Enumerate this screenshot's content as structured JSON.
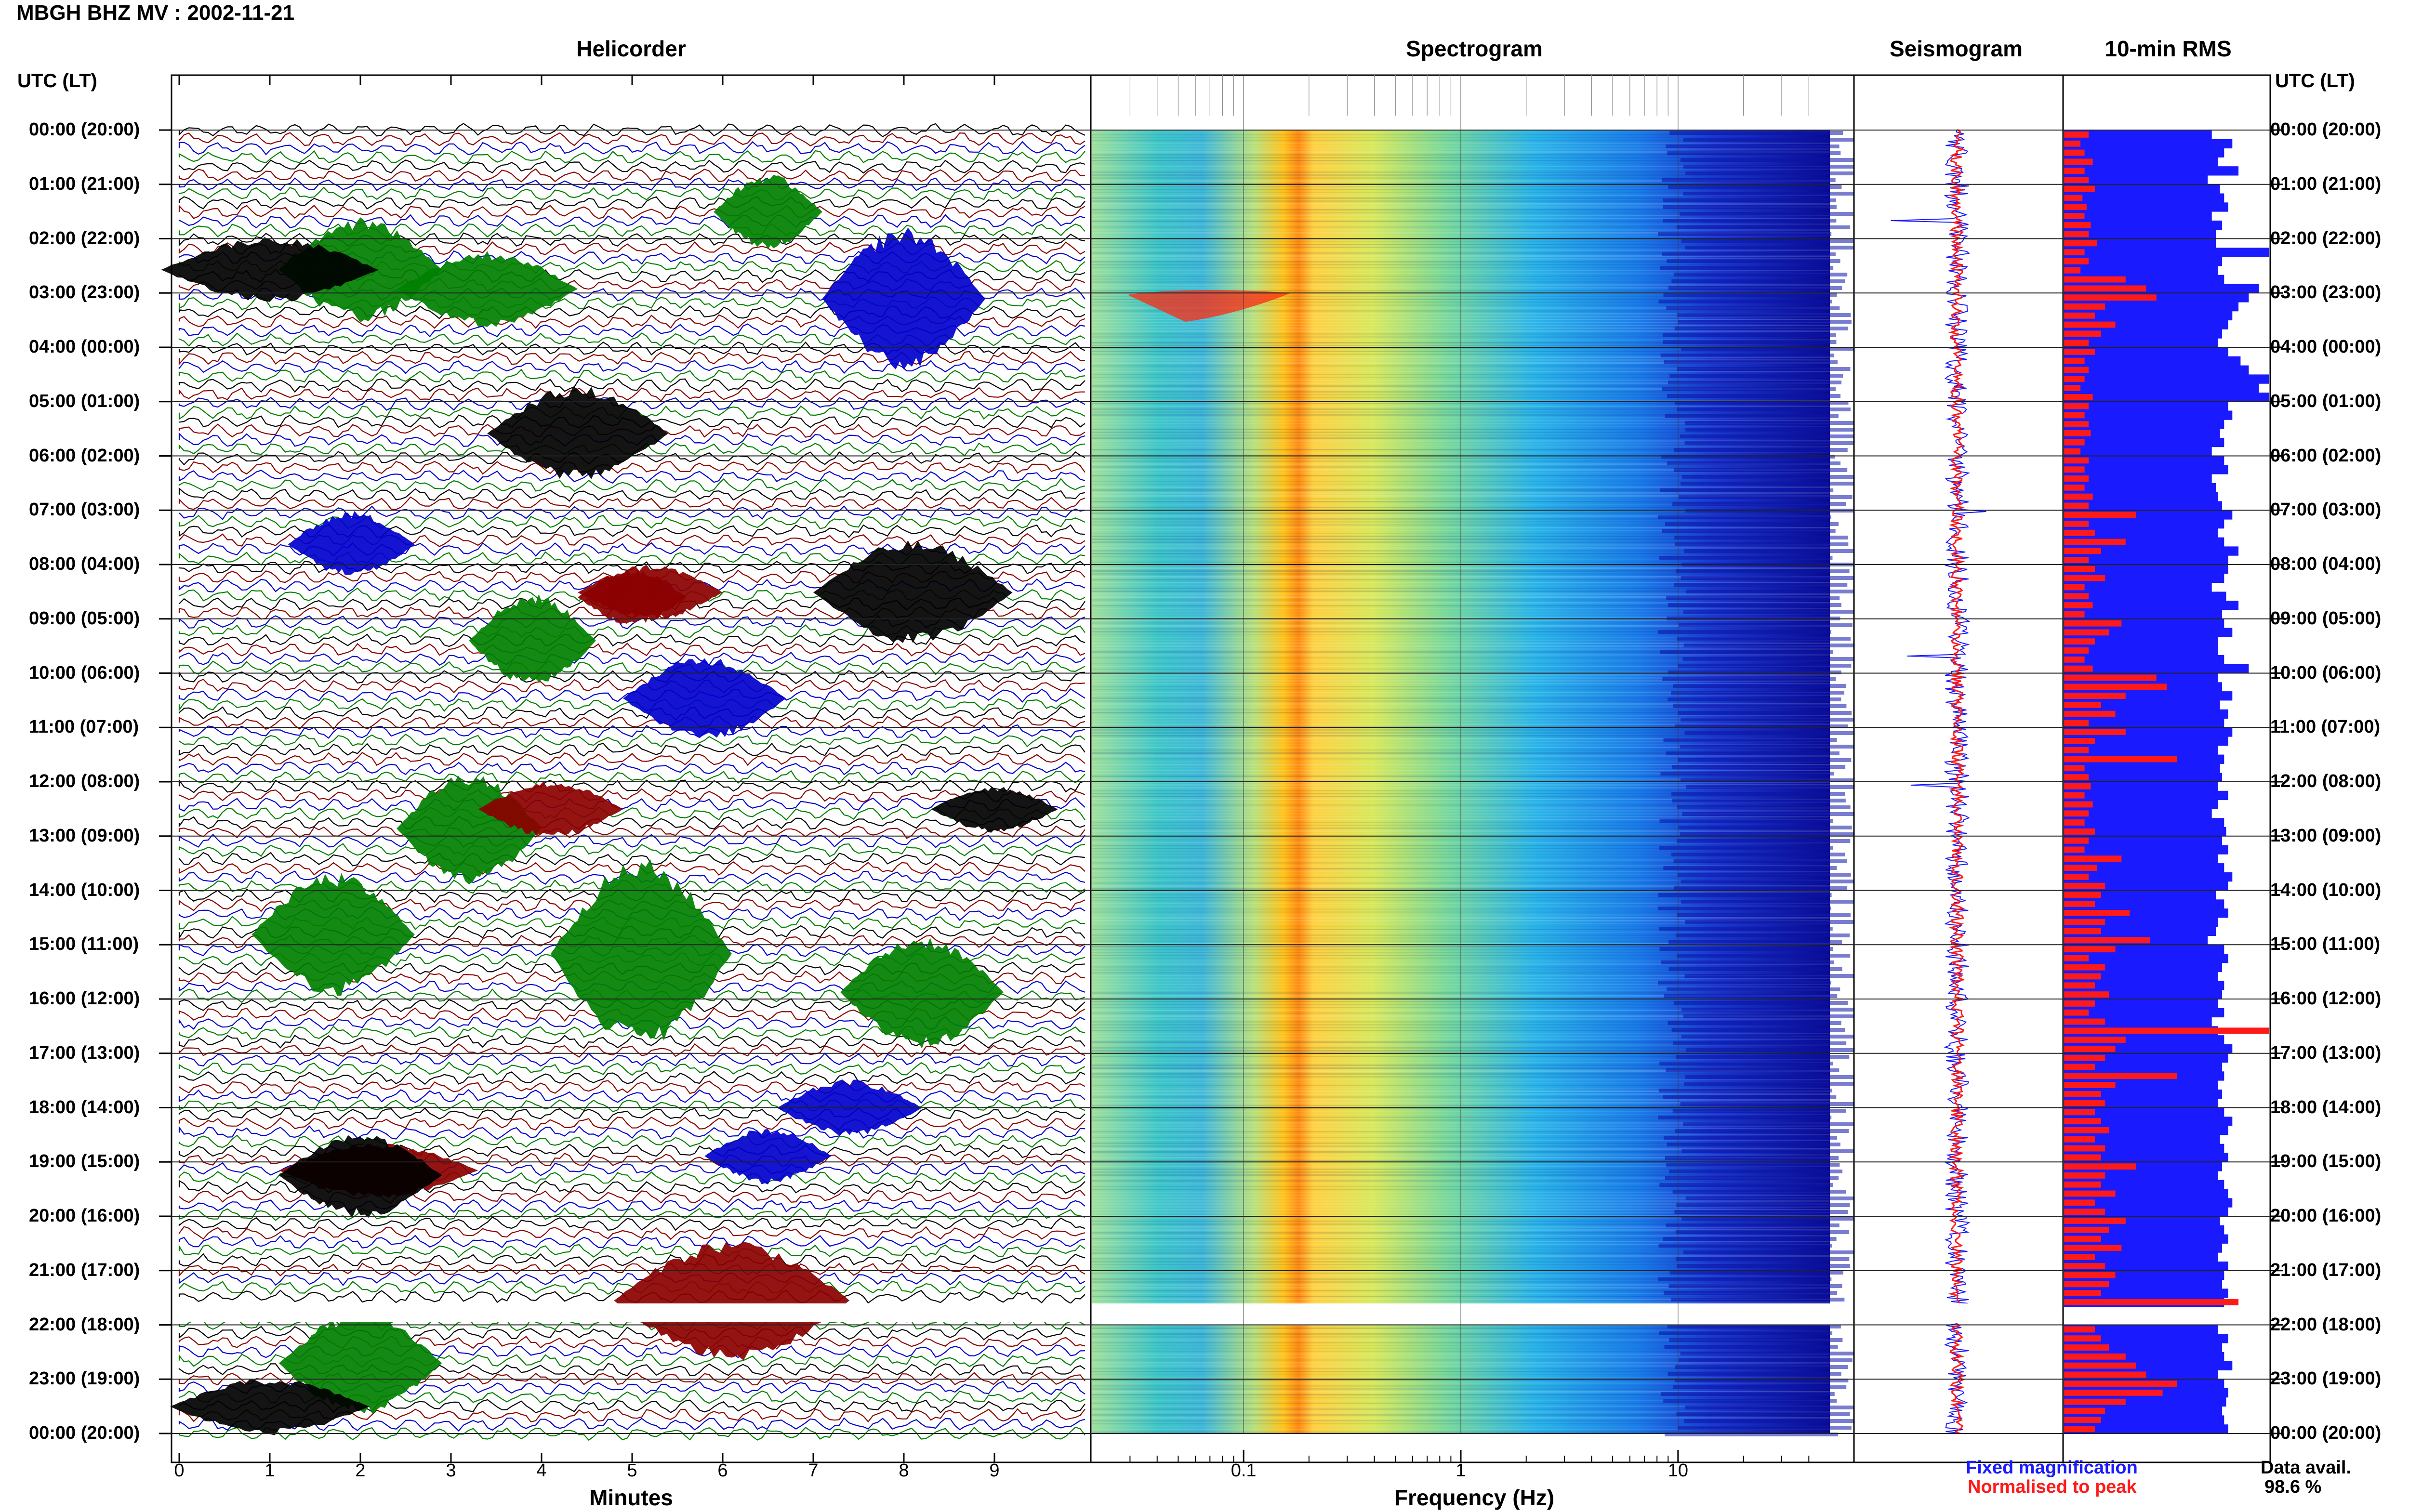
{
  "header": {
    "title": "MBGH BHZ MV : 2002-11-21"
  },
  "panels": {
    "helicorder": "Helicorder",
    "spectrogram": "Spectrogram",
    "seismogram": "Seismogram",
    "rms": "10-min RMS"
  },
  "axes": {
    "utc_label": "UTC (LT)",
    "hours": [
      "00:00 (20:00)",
      "01:00 (21:00)",
      "02:00 (22:00)",
      "03:00 (23:00)",
      "04:00 (00:00)",
      "05:00 (01:00)",
      "06:00 (02:00)",
      "07:00 (03:00)",
      "08:00 (04:00)",
      "09:00 (05:00)",
      "10:00 (06:00)",
      "11:00 (07:00)",
      "12:00 (08:00)",
      "13:00 (09:00)",
      "14:00 (10:00)",
      "15:00 (11:00)",
      "16:00 (12:00)",
      "17:00 (13:00)",
      "18:00 (14:00)",
      "19:00 (15:00)",
      "20:00 (16:00)",
      "21:00 (17:00)",
      "22:00 (18:00)",
      "23:00 (19:00)",
      "00:00 (20:00)"
    ],
    "minutes_ticks": [
      "0",
      "1",
      "2",
      "3",
      "4",
      "5",
      "6",
      "7",
      "8",
      "9"
    ],
    "minutes_label": "Minutes",
    "freq_ticks": [
      "0.1",
      "1",
      "10"
    ],
    "freq_label": "Frequency (Hz)"
  },
  "legend": {
    "fixed": "Fixed magnification",
    "normalised": "Normalised to peak",
    "fixed_color": "#1a1aff",
    "normalised_color": "#ff1a1a"
  },
  "availability": {
    "label": "Data avail.",
    "value": "98.6 %"
  },
  "chart_data": [
    {
      "type": "line",
      "panel": "Helicorder",
      "xlabel": "Minutes",
      "xlim": [
        0,
        10
      ],
      "ylabel": "UTC (LT)",
      "series_colors": [
        "#000000",
        "#8b0000",
        "#0000cd",
        "#008000"
      ],
      "data_gap_utc": [
        "21:40",
        "22:00"
      ]
    },
    {
      "type": "heatmap",
      "panel": "Spectrogram",
      "xlabel": "Frequency (Hz)",
      "xscale": "log",
      "xlim": [
        0.02,
        50
      ],
      "peak_band_hz": [
        0.2,
        0.25
      ],
      "data_gap_utc": [
        "21:40",
        "22:00"
      ]
    },
    {
      "type": "line",
      "panel": "Seismogram",
      "series": [
        {
          "name": "Fixed magnification"
        },
        {
          "name": "Normalised to peak"
        }
      ]
    },
    {
      "type": "bar",
      "panel": "10-min RMS",
      "ylabel": "UTC (LT)",
      "series": [
        {
          "name": "Fixed magnification",
          "values": [
            0.72,
            0.82,
            0.78,
            0.75,
            0.85,
            0.7,
            0.76,
            0.78,
            0.8,
            0.72,
            0.77,
            0.74,
            0.74,
            1.0,
            0.77,
            0.75,
            0.78,
            0.95,
            0.9,
            0.85,
            0.82,
            0.8,
            0.77,
            0.75,
            0.8,
            0.86,
            0.9,
            1.0,
            0.95,
            1.0,
            0.8,
            0.82,
            0.78,
            0.76,
            0.78,
            0.72,
            0.78,
            0.8,
            0.72,
            0.74,
            0.75,
            0.77,
            0.82,
            0.78,
            0.75,
            0.78,
            0.85,
            0.8,
            0.8,
            0.78,
            0.72,
            0.79,
            0.85,
            0.77,
            0.78,
            0.82,
            0.75,
            0.75,
            0.78,
            0.9,
            0.75,
            0.77,
            0.82,
            0.76,
            0.8,
            0.78,
            0.82,
            0.8,
            0.75,
            0.78,
            0.76,
            0.77,
            0.75,
            0.8,
            0.75,
            0.72,
            0.78,
            0.79,
            0.77,
            0.8,
            0.75,
            0.78,
            0.82,
            0.8,
            0.74,
            0.78,
            0.8,
            0.75,
            0.74,
            0.7,
            0.78,
            0.8,
            0.77,
            0.75,
            0.78,
            0.77,
            0.75,
            0.78,
            0.72,
            0.75,
            0.78,
            0.82,
            0.8,
            0.77,
            0.78,
            0.75,
            0.77,
            0.75,
            0.78,
            0.82,
            0.8,
            0.76,
            0.78,
            0.8,
            0.77,
            0.75,
            0.78,
            0.8,
            0.82,
            0.8,
            0.76,
            0.78,
            0.8,
            0.77,
            0.75,
            0.8,
            0.78,
            0.77,
            0.8,
            0.78,
            0.0,
            0.0,
            0.75,
            0.8,
            0.77,
            0.78,
            0.82,
            0.75,
            0.78,
            0.8,
            0.79,
            0.77,
            0.78,
            0.8
          ]
        },
        {
          "name": "Normalised to peak",
          "values": [
            0.12,
            0.08,
            0.1,
            0.14,
            0.1,
            0.12,
            0.15,
            0.09,
            0.11,
            0.1,
            0.13,
            0.12,
            0.16,
            0.1,
            0.12,
            0.08,
            0.3,
            0.4,
            0.45,
            0.2,
            0.15,
            0.25,
            0.18,
            0.12,
            0.15,
            0.1,
            0.12,
            0.1,
            0.08,
            0.14,
            0.12,
            0.1,
            0.12,
            0.13,
            0.1,
            0.08,
            0.12,
            0.1,
            0.12,
            0.1,
            0.14,
            0.12,
            0.35,
            0.12,
            0.15,
            0.3,
            0.18,
            0.12,
            0.15,
            0.2,
            0.1,
            0.12,
            0.14,
            0.1,
            0.28,
            0.22,
            0.15,
            0.12,
            0.1,
            0.14,
            0.45,
            0.5,
            0.3,
            0.18,
            0.25,
            0.12,
            0.3,
            0.15,
            0.12,
            0.55,
            0.1,
            0.12,
            0.13,
            0.1,
            0.14,
            0.12,
            0.1,
            0.15,
            0.12,
            0.1,
            0.28,
            0.16,
            0.12,
            0.2,
            0.18,
            0.15,
            0.32,
            0.2,
            0.18,
            0.42,
            0.25,
            0.12,
            0.2,
            0.18,
            0.15,
            0.22,
            0.15,
            0.12,
            0.2,
            1.0,
            0.3,
            0.25,
            0.2,
            0.15,
            0.55,
            0.25,
            0.18,
            0.2,
            0.15,
            0.18,
            0.22,
            0.15,
            0.2,
            0.18,
            0.35,
            0.2,
            0.18,
            0.25,
            0.15,
            0.2,
            0.3,
            0.22,
            0.18,
            0.28,
            0.15,
            0.2,
            0.25,
            0.22,
            0.18,
            0.85,
            0.0,
            0.0,
            0.15,
            0.18,
            0.22,
            0.3,
            0.35,
            0.4,
            0.55,
            0.48,
            0.3,
            0.2,
            0.18,
            0.15
          ]
        }
      ]
    }
  ]
}
